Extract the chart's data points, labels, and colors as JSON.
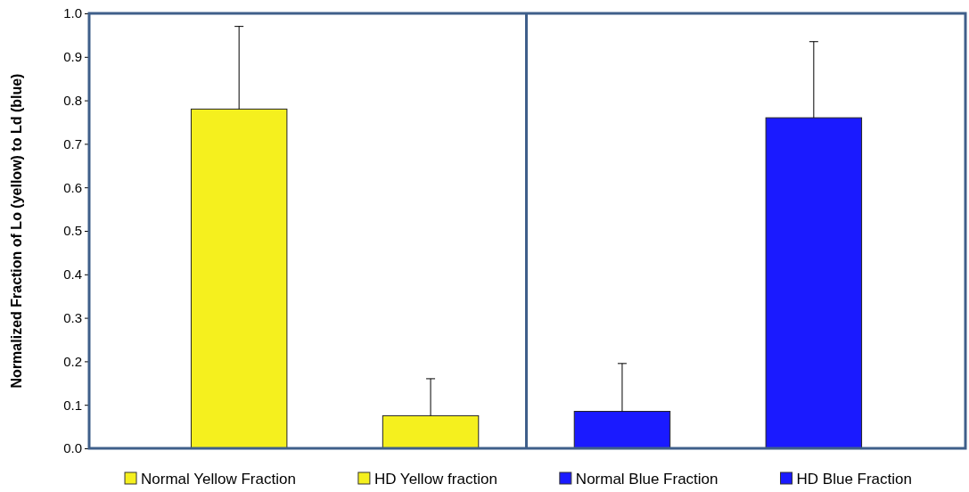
{
  "chart_data": {
    "type": "bar",
    "ylabel": "Normalized Fraction of Lo (yellow) to Ld (blue)",
    "categories": [
      null,
      null,
      null,
      null
    ],
    "ylim": [
      0,
      1
    ],
    "yticks": [
      {
        "value": 0,
        "label": "0.0"
      },
      {
        "value": 0.1,
        "label": "0.1"
      },
      {
        "value": 0.2,
        "label": "0.2"
      },
      {
        "value": 0.3,
        "label": "0.3"
      },
      {
        "value": 0.4,
        "label": "0.4"
      },
      {
        "value": 0.5,
        "label": "0.5"
      },
      {
        "value": 0.6,
        "label": "0.6"
      },
      {
        "value": 0.7,
        "label": "0.7"
      },
      {
        "value": 0.8,
        "label": "0.8"
      },
      {
        "value": 0.9,
        "label": "0.9"
      },
      {
        "value": 1,
        "label": "1.0"
      }
    ],
    "stacked": true,
    "series": [
      {
        "name": "Normal Yellow Fraction",
        "color": "#f5f01e",
        "values": [
          0.78,
          null,
          null,
          null
        ],
        "errors": [
          [
            0.78,
            0.97
          ],
          null,
          null,
          null
        ]
      },
      {
        "name": "HD Yellow fraction",
        "color": "#f5f01e",
        "values": [
          null,
          0.075,
          null,
          null
        ],
        "errors": [
          null,
          [
            0.075,
            0.16
          ],
          null,
          null
        ]
      },
      {
        "name": "Normal Blue Fraction",
        "color": "#1a1aff",
        "values": [
          null,
          null,
          0.085,
          null
        ],
        "errors": [
          null,
          null,
          [
            0.085,
            0.195
          ],
          null
        ]
      },
      {
        "name": "HD Blue Fraction",
        "color": "#1a1aff",
        "values": [
          null,
          null,
          null,
          0.76
        ],
        "errors": [
          null,
          null,
          null,
          [
            0.76,
            0.935
          ]
        ]
      }
    ],
    "legend": "bottom"
  }
}
